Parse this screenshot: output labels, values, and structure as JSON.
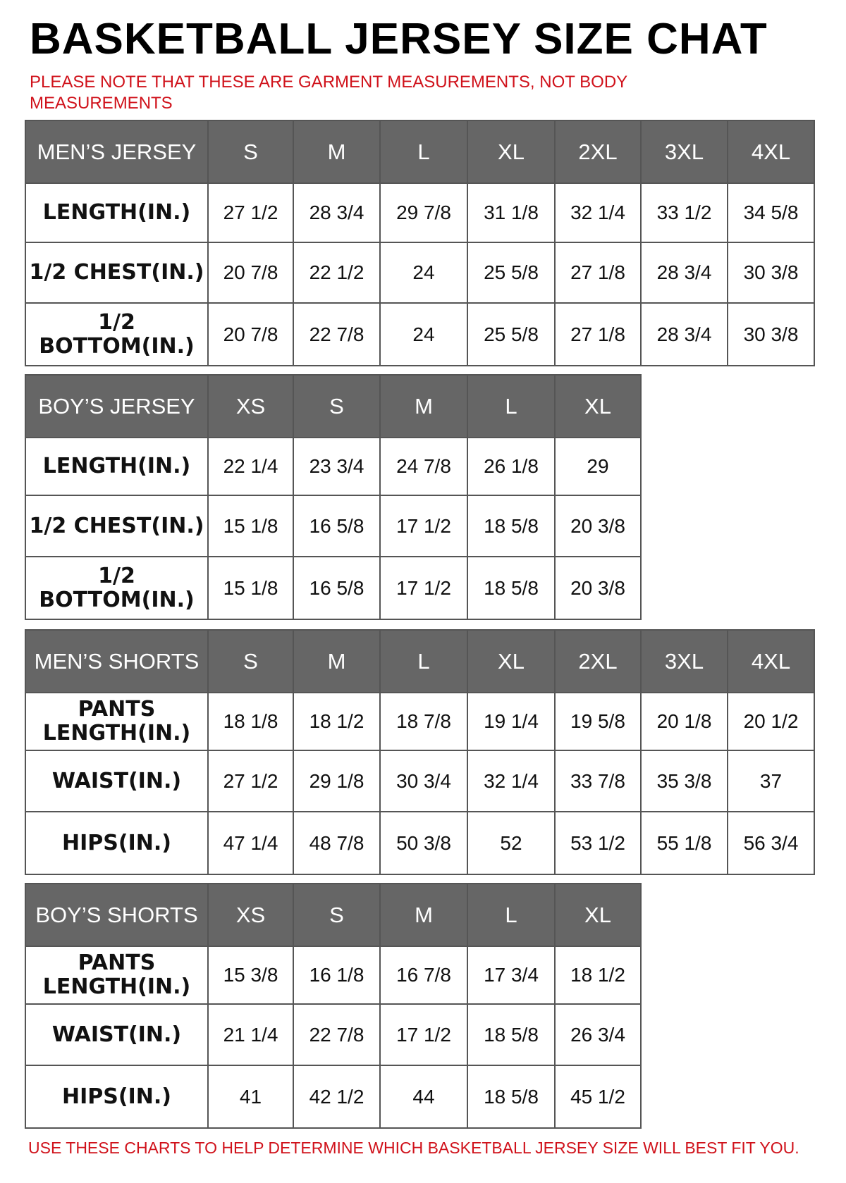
{
  "header": {
    "title": "BASKETBALL JERSEY SIZE CHAT",
    "note": "PLEASE NOTE THAT THESE ARE GARMENT MEASUREMENTS, NOT BODY MEASUREMENTS"
  },
  "tables": [
    {
      "header": [
        "MEN’S JERSEY",
        "S",
        "M",
        "L",
        "XL",
        "2XL",
        "3XL",
        "4XL"
      ],
      "rows": [
        [
          "LENGTH(IN.)",
          "27 1/2",
          "28 3/4",
          "29 7/8",
          "31 1/8",
          "32 1/4",
          "33 1/2",
          "34 5/8"
        ],
        [
          "1/2 CHEST(IN.)",
          "20 7/8",
          "22 1/2",
          "24",
          "25 5/8",
          "27 1/8",
          "28 3/4",
          "30 3/8"
        ],
        [
          "1/2 BOTTOM(IN.)",
          "20 7/8",
          "22 7/8",
          "24",
          "25 5/8",
          "27 1/8",
          "28 3/4",
          "30 3/8"
        ]
      ]
    },
    {
      "header": [
        "BOY’S JERSEY",
        "XS",
        "S",
        "M",
        "L",
        "XL"
      ],
      "rows": [
        [
          "LENGTH(IN.)",
          "22 1/4",
          "23 3/4",
          "24 7/8",
          "26 1/8",
          "29"
        ],
        [
          "1/2 CHEST(IN.)",
          "15 1/8",
          "16 5/8",
          "17 1/2",
          "18 5/8",
          "20 3/8"
        ],
        [
          "1/2 BOTTOM(IN.)",
          "15 1/8",
          "16 5/8",
          "17 1/2",
          "18 5/8",
          "20 3/8"
        ]
      ]
    },
    {
      "header": [
        "MEN’S SHORTS",
        "S",
        "M",
        "L",
        "XL",
        "2XL",
        "3XL",
        "4XL"
      ],
      "rows": [
        [
          "PANTS LENGTH(IN.)",
          "18 1/8",
          "18 1/2",
          "18 7/8",
          "19 1/4",
          "19 5/8",
          "20 1/8",
          "20 1/2"
        ],
        [
          "WAIST(IN.)",
          "27 1/2",
          "29 1/8",
          "30 3/4",
          "32 1/4",
          "33 7/8",
          "35 3/8",
          "37"
        ],
        [
          "HIPS(IN.)",
          "47 1/4",
          "48 7/8",
          "50 3/8",
          "52",
          "53 1/2",
          "55 1/8",
          "56 3/4"
        ]
      ]
    },
    {
      "header": [
        "BOY’S SHORTS",
        "XS",
        "S",
        "M",
        "L",
        "XL"
      ],
      "rows": [
        [
          "PANTS LENGTH(IN.)",
          "15 3/8",
          "16 1/8",
          "16 7/8",
          "17 3/4",
          "18 1/2"
        ],
        [
          "WAIST(IN.)",
          "21 1/4",
          "22 7/8",
          "17 1/2",
          "18 5/8",
          "26 3/4"
        ],
        [
          "HIPS(IN.)",
          "41",
          "42 1/2",
          "44",
          "18 5/8",
          "45 1/2"
        ]
      ]
    }
  ],
  "footer": "USE THESE CHARTS TO HELP DETERMINE WHICH BASKETBALL JERSEY SIZE WILL BEST FIT YOU."
}
